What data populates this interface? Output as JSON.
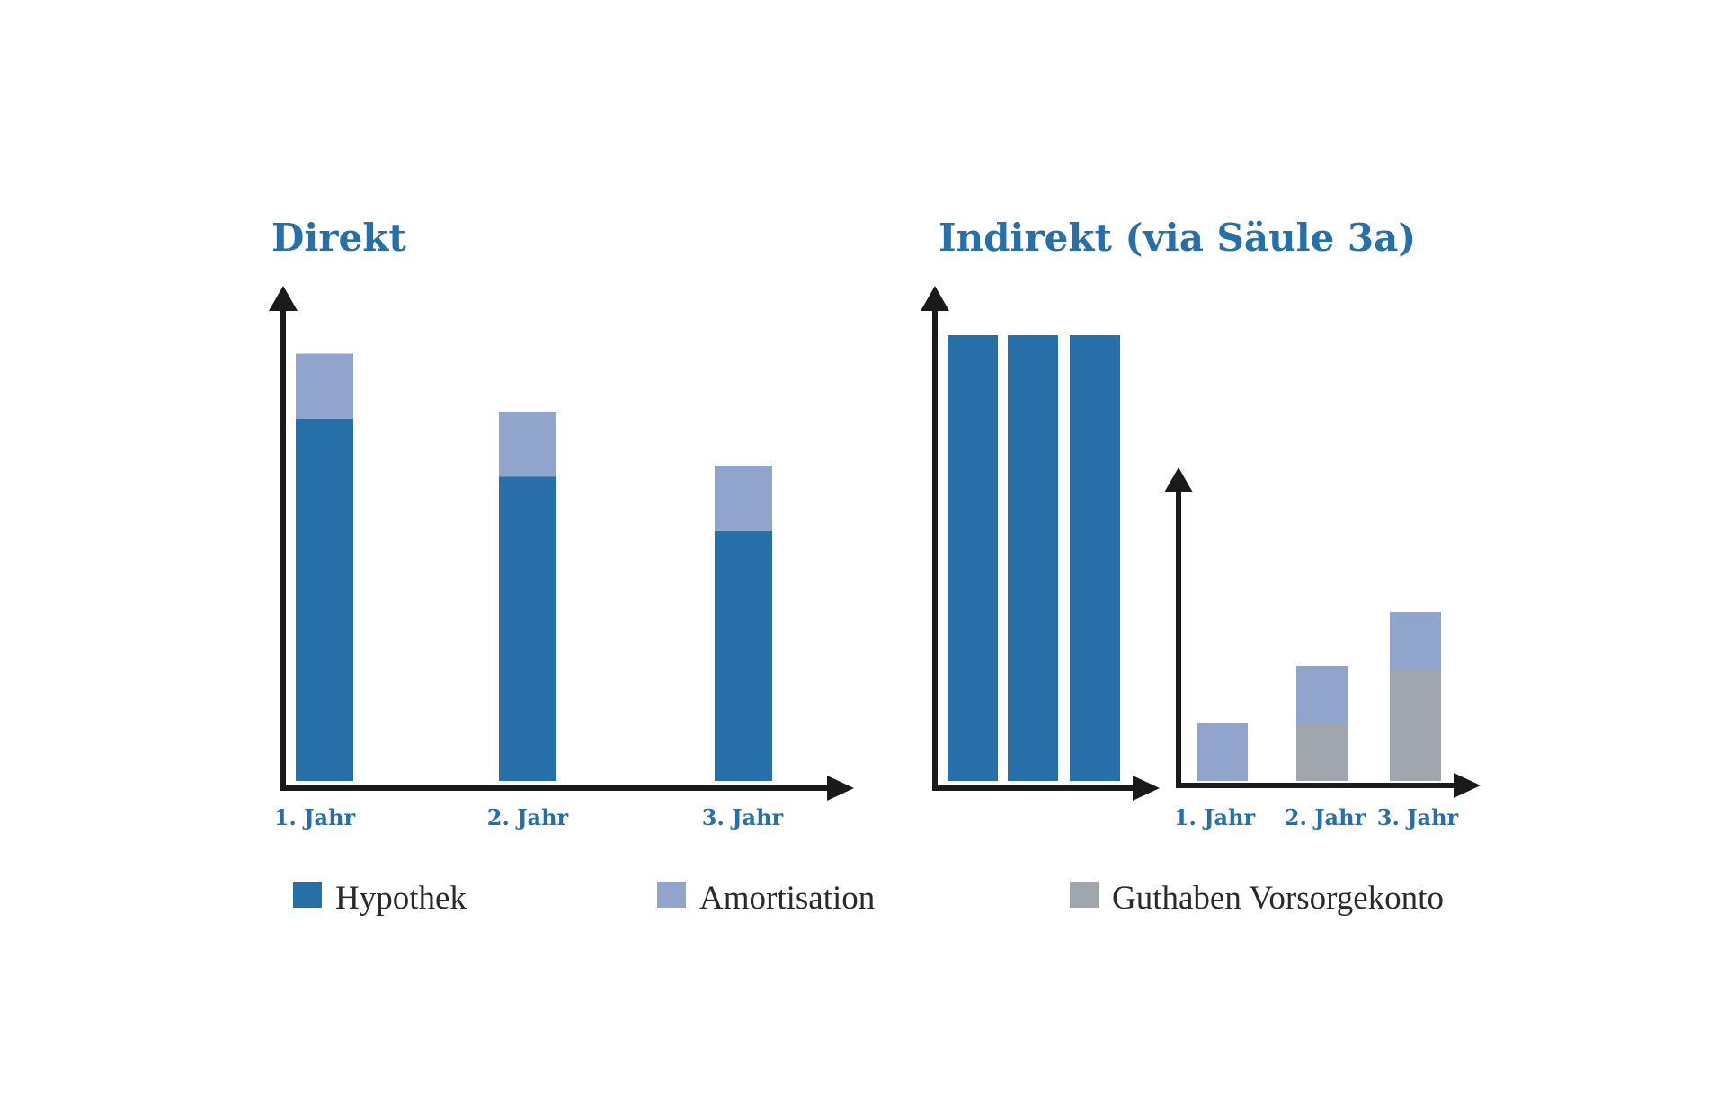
{
  "colors": {
    "hypothek": "#266fa9",
    "amortisation": "#91a4cc",
    "guthaben": "#a0a6ad",
    "axis": "#1a1a1a",
    "text_blue": "#266fa9"
  },
  "legend": [
    {
      "key": "hypothek",
      "label": "Hypothek",
      "color": "#266fa9"
    },
    {
      "key": "amortisation",
      "label": "Amortisation",
      "color": "#91a4cc"
    },
    {
      "key": "guthaben",
      "label": "Guthaben Vorsorgekonto",
      "color": "#a0a6ad"
    }
  ],
  "chart_data": [
    {
      "type": "bar",
      "title": "Direkt",
      "categories": [
        "1. Jahr",
        "2. Jahr",
        "3. Jahr"
      ],
      "stacked": true,
      "series": [
        {
          "name": "Hypothek",
          "values": [
            100,
            84,
            69
          ]
        },
        {
          "name": "Amortisation",
          "values": [
            18,
            18,
            18
          ]
        }
      ],
      "ylim": [
        0,
        126
      ],
      "grid": false,
      "legend_position": "bottom"
    },
    {
      "type": "bar",
      "title": "Indirekt (via Säule 3a)",
      "subcharts": [
        {
          "categories": [
            "1. Jahr",
            "2. Jahr",
            "3. Jahr"
          ],
          "series": [
            {
              "name": "Hypothek",
              "values": [
                100,
                100,
                100
              ]
            }
          ],
          "ylim": [
            0,
            108
          ]
        },
        {
          "categories": [
            "1. Jahr",
            "2. Jahr",
            "3. Jahr"
          ],
          "stacked": true,
          "series": [
            {
              "name": "Guthaben Vorsorgekonto",
              "values": [
                0,
                16,
                31
              ]
            },
            {
              "name": "Amortisation",
              "values": [
                16,
                16,
                16
              ]
            }
          ],
          "ylim": [
            0,
            85
          ]
        }
      ],
      "grid": false,
      "legend_position": "bottom"
    }
  ]
}
